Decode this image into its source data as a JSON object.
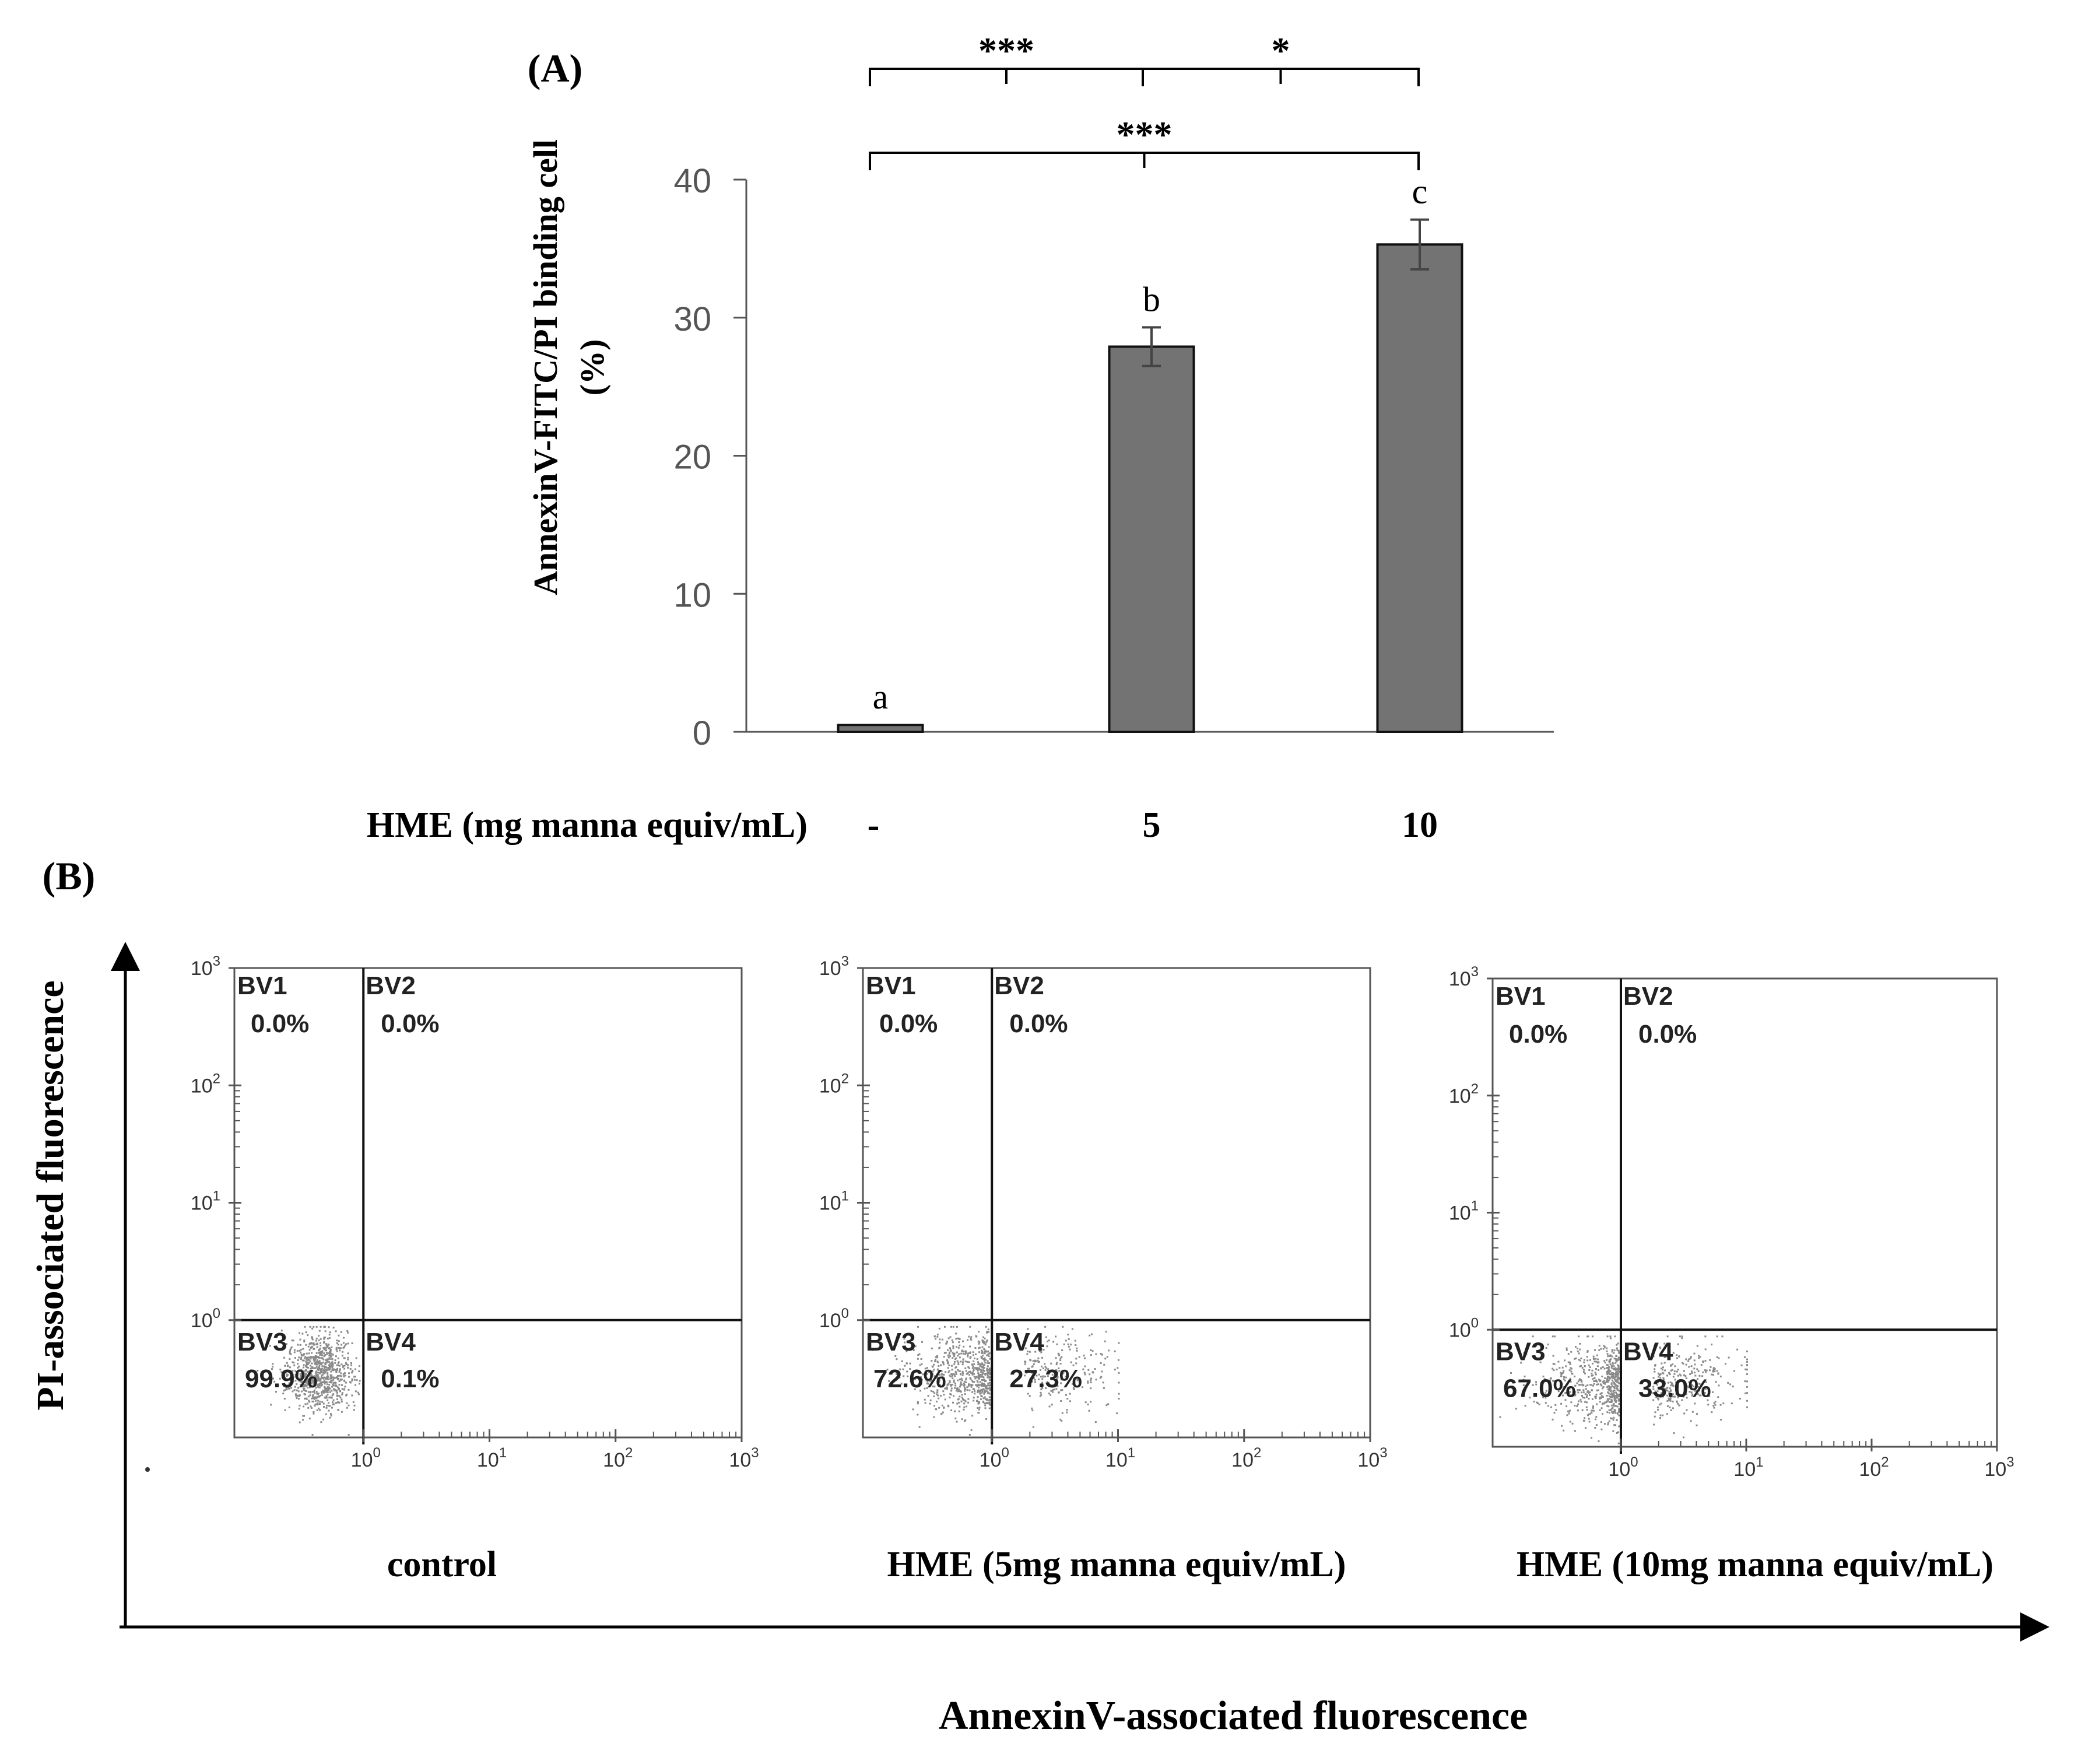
{
  "panel_a": {
    "label": "(A)",
    "x_axis_title": "HME (mg manna equiv/mL)",
    "chart_data": {
      "type": "bar",
      "title": "",
      "ylabel_line1": "AnnexinV-FITC/PI binding cell",
      "ylabel_line2": "(%)",
      "ylim": [
        0,
        40
      ],
      "yticks": [
        0,
        10,
        20,
        30,
        40
      ],
      "categories": [
        "-",
        "5",
        "10"
      ],
      "values": [
        0.5,
        27.9,
        35.3
      ],
      "errors": [
        0.1,
        1.4,
        1.8
      ],
      "letters": [
        "a",
        "b",
        "c"
      ],
      "bar_color": "#737373",
      "significance": [
        {
          "from": 0,
          "to": 1,
          "label": "***",
          "level": 1
        },
        {
          "from": 1,
          "to": 2,
          "label": "*",
          "level": 1
        },
        {
          "from": 0,
          "to": 2,
          "label": "***",
          "level": 0
        }
      ]
    }
  },
  "panel_b": {
    "label": "(B)",
    "y_axis_title": "PI-associated  fluorescence",
    "x_axis_title": "AnnexinV-associated fluorescence",
    "plots": [
      {
        "caption": "control",
        "quadrants": [
          {
            "name": "BV1",
            "value": "0.0%"
          },
          {
            "name": "BV2",
            "value": "0.0%"
          },
          {
            "name": "BV3",
            "value": "99.9%"
          },
          {
            "name": "BV4",
            "value": "0.1%"
          }
        ],
        "cluster_log_center": -0.35,
        "cluster_log_spread": 0.22,
        "annexin_positive_fraction": 0.001
      },
      {
        "caption": "HME (5mg manna equiv/mL)",
        "quadrants": [
          {
            "name": "BV1",
            "value": "0.0%"
          },
          {
            "name": "BV2",
            "value": "0.0%"
          },
          {
            "name": "BV3",
            "value": "72.6%"
          },
          {
            "name": "BV4",
            "value": "27.3%"
          }
        ],
        "cluster_log_center": -0.2,
        "cluster_log_spread": 0.4,
        "annexin_positive_fraction": 0.273
      },
      {
        "caption": "HME (10mg manna equiv/mL)",
        "quadrants": [
          {
            "name": "BV1",
            "value": "0.0%"
          },
          {
            "name": "BV2",
            "value": "0.0%"
          },
          {
            "name": "BV3",
            "value": "67.0%"
          },
          {
            "name": "BV4",
            "value": "33.0%"
          }
        ],
        "cluster_log_center": -0.15,
        "cluster_log_spread": 0.45,
        "annexin_positive_fraction": 0.33
      }
    ],
    "log_decades": [
      "10",
      "10",
      "10",
      "10"
    ],
    "log_exponents": [
      "0",
      "1",
      "2",
      "3"
    ],
    "dot_color": "#8a8a8a"
  }
}
